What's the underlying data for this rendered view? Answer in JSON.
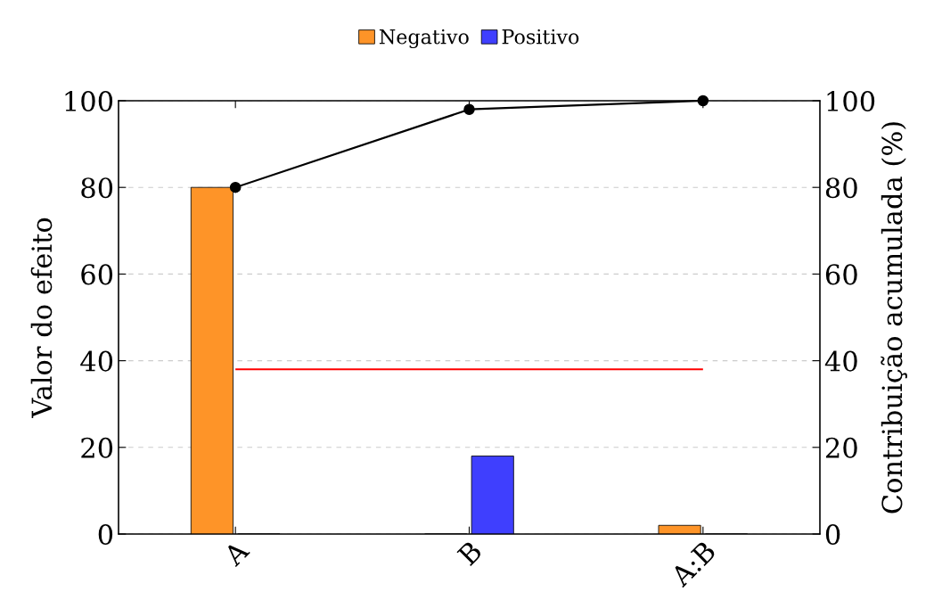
{
  "chart_data": {
    "type": "bar",
    "categories": [
      "A",
      "B",
      "A:B"
    ],
    "series": [
      {
        "name": "Negativo",
        "color": "#fe9428",
        "values": [
          80,
          0,
          2
        ]
      },
      {
        "name": "Positivo",
        "color": "#3f3ffe",
        "values": [
          0,
          18,
          0
        ]
      },
      {
        "type": "line",
        "axis": "y2",
        "color": "#000000",
        "marker": "circle",
        "values": [
          80,
          98,
          100
        ]
      }
    ],
    "ylabel": "Valor do efeito",
    "y2label": "Contribuição acumulada (%)",
    "ylim": [
      0,
      100
    ],
    "yticks": [
      0,
      20,
      40,
      60,
      80,
      100
    ],
    "y2lim": [
      0,
      100
    ],
    "y2ticks": [
      0,
      20,
      40,
      60,
      80,
      100
    ],
    "ref_lines": [
      {
        "axis": "y",
        "value": 38,
        "color": "#ff0000"
      }
    ],
    "grid": "y",
    "legend": "top"
  }
}
